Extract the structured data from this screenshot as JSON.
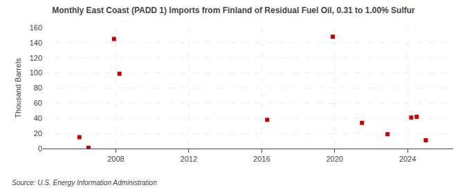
{
  "chart_data": {
    "type": "scatter",
    "title": "Monthly East Coast (PADD 1) Imports from Finland of Residual Fuel Oil, 0.31 to 1.00% Sulfur",
    "ylabel": "Thousand Barrels",
    "source": "Source: U.S. Energy Information Administration",
    "x": [
      2006.0,
      2006.5,
      2007.9,
      2008.2,
      2016.3,
      2019.9,
      2021.5,
      2022.9,
      2024.2,
      2024.5,
      2025.0
    ],
    "values": [
      15,
      1,
      145,
      99,
      38,
      148,
      34,
      19,
      41,
      42,
      11
    ],
    "color": "#cc0000",
    "marker": "square",
    "xlim": [
      2004.0,
      2026.5
    ],
    "xticks": [
      2008,
      2012,
      2016,
      2020,
      2024
    ],
    "ylim": [
      0,
      160
    ],
    "yticks": [
      0,
      20,
      40,
      60,
      80,
      100,
      120,
      140,
      160
    ],
    "grid": true
  }
}
